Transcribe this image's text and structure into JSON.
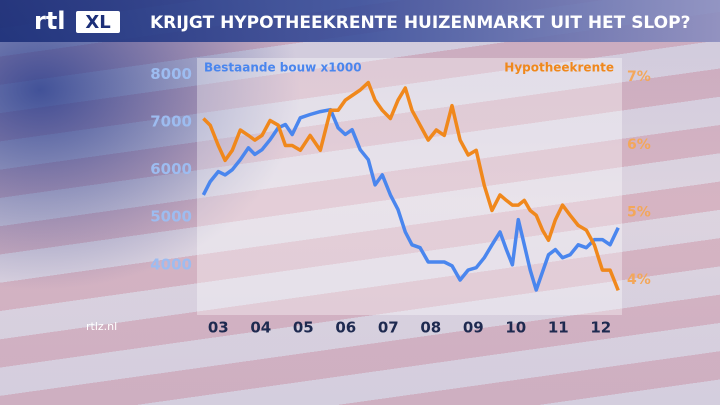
{
  "brand": {
    "logo": "rtl",
    "badge": "XL",
    "footer": "rtlz.nl"
  },
  "chart_data": {
    "type": "line",
    "title": "KRIJGT HYPOTHEEKRENTE HUIZENMARKT UIT HET SLOP?",
    "x": [
      2003.15,
      2003.31,
      2003.5,
      2003.66,
      2003.83,
      2004.02,
      2004.21,
      2004.36,
      2004.53,
      2004.72,
      2004.91,
      2005.08,
      2005.24,
      2005.43,
      2005.66,
      2005.9,
      2006.14,
      2006.32,
      2006.49,
      2006.65,
      2006.84,
      2007.03,
      2007.19,
      2007.36,
      2007.55,
      2007.73,
      2007.9,
      2008.06,
      2008.25,
      2008.44,
      2008.63,
      2008.82,
      2009.0,
      2009.19,
      2009.38,
      2009.57,
      2009.76,
      2009.94,
      2010.13,
      2010.28,
      2010.42,
      2010.56,
      2010.7,
      2010.84,
      2010.98,
      2011.13,
      2011.27,
      2011.43,
      2011.6,
      2011.78,
      2011.97,
      2012.16,
      2012.35,
      2012.54,
      2012.72,
      2012.91
    ],
    "xlim": [
      2003,
      2013
    ],
    "xticks": [
      {
        "value": 2003.5,
        "label": "03"
      },
      {
        "value": 2004.5,
        "label": "04"
      },
      {
        "value": 2005.5,
        "label": "05"
      },
      {
        "value": 2006.5,
        "label": "06"
      },
      {
        "value": 2007.5,
        "label": "07"
      },
      {
        "value": 2008.5,
        "label": "08"
      },
      {
        "value": 2009.5,
        "label": "09"
      },
      {
        "value": 2010.5,
        "label": "10"
      },
      {
        "value": 2011.5,
        "label": "11"
      },
      {
        "value": 2012.5,
        "label": "12"
      }
    ],
    "ylim": [
      3050,
      8200
    ],
    "yticks": [
      4000,
      5000,
      6000,
      7000,
      8000
    ],
    "y2lim": [
      3.56,
      7.18
    ],
    "y2ticks": [
      {
        "value": 4,
        "label": "4%"
      },
      {
        "value": 5,
        "label": "5%"
      },
      {
        "value": 6,
        "label": "6%"
      },
      {
        "value": 7,
        "label": "7%"
      }
    ],
    "series": [
      {
        "name": "Bestaande bouw x1000",
        "color": "#4a86ee",
        "values": [
          5470,
          5750,
          5960,
          5890,
          6000,
          6210,
          6460,
          6320,
          6420,
          6630,
          6880,
          6950,
          6740,
          7090,
          7160,
          7220,
          7260,
          6880,
          6740,
          6840,
          6420,
          6210,
          5680,
          5890,
          5470,
          5160,
          4690,
          4420,
          4360,
          4060,
          4060,
          4060,
          3980,
          3680,
          3890,
          3940,
          4150,
          4420,
          4690,
          4320,
          4000,
          4950,
          4420,
          3890,
          3470,
          3850,
          4210,
          4320,
          4150,
          4210,
          4420,
          4360,
          4530,
          4530,
          4420,
          4780
        ]
      },
      {
        "name": "Hypotheekrente",
        "color": "#f0881c",
        "axis": "y2",
        "values": [
          6.39,
          6.29,
          5.99,
          5.77,
          5.92,
          6.22,
          6.14,
          6.07,
          6.14,
          6.36,
          6.29,
          5.99,
          5.99,
          5.92,
          6.14,
          5.92,
          6.51,
          6.51,
          6.66,
          6.73,
          6.81,
          6.92,
          6.66,
          6.51,
          6.39,
          6.66,
          6.84,
          6.51,
          6.29,
          6.07,
          6.22,
          6.14,
          6.58,
          6.07,
          5.85,
          5.92,
          5.4,
          5.03,
          5.26,
          5.18,
          5.11,
          5.11,
          5.18,
          5.03,
          4.96,
          4.74,
          4.59,
          4.89,
          5.11,
          4.96,
          4.81,
          4.74,
          4.52,
          4.15,
          4.15,
          3.85
        ]
      }
    ]
  }
}
